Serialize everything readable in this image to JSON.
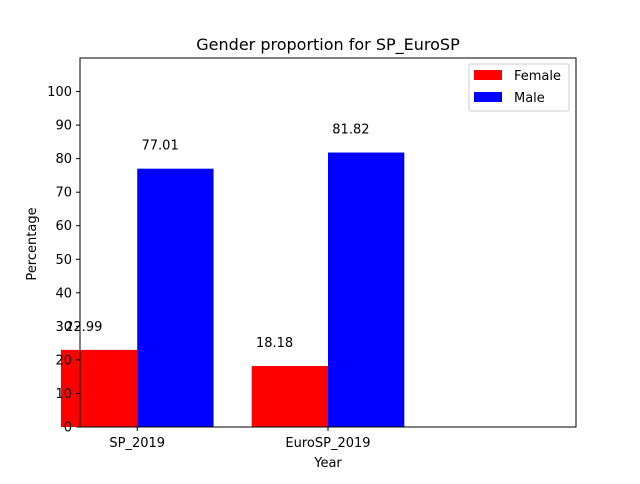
{
  "chart_data": {
    "type": "bar",
    "title": "Gender proportion for SP_EuroSP",
    "xlabel": "Year",
    "ylabel": "Percentage",
    "categories": [
      "SP_2019",
      "EuroSP_2019"
    ],
    "series": [
      {
        "name": "Female",
        "color": "#ff0000",
        "values": [
          22.99,
          18.18
        ]
      },
      {
        "name": "Male",
        "color": "#0000ff",
        "values": [
          77.01,
          81.82
        ]
      }
    ],
    "ylim": [
      0,
      110
    ],
    "yticks": [
      0,
      10,
      20,
      30,
      40,
      50,
      60,
      70,
      80,
      90,
      100
    ],
    "data_labels": [
      [
        "22.99",
        "18.18"
      ],
      [
        "77.01",
        "81.82"
      ]
    ],
    "legend_position": "top-right",
    "grid": false
  }
}
